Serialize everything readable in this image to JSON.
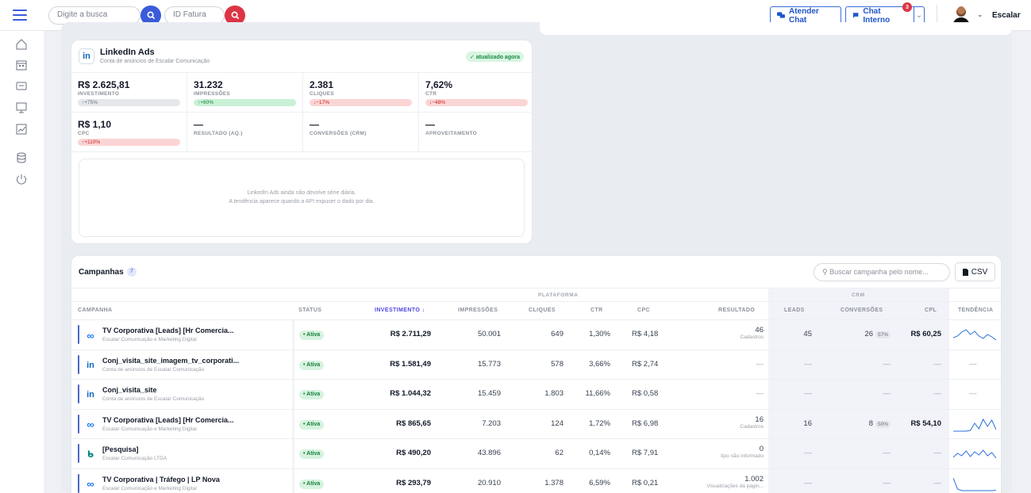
{
  "topbar": {
    "search_placeholder": "Digite a busca",
    "invoice_placeholder": "ID Fatura",
    "attend_chat": "Atender Chat",
    "internal_chat": "Chat Interno",
    "internal_chat_badge": "3",
    "user_name": "Escalar"
  },
  "linkedin": {
    "title": "LinkedIn Ads",
    "subtitle": "Conta de anúncios de Escalar Comunicação",
    "updated": "✓ atualizado agora",
    "metrics": [
      {
        "value": "R$ 2.625,81",
        "label": "INVESTIMENTO",
        "delta": "↑+75%",
        "tone": "gray"
      },
      {
        "value": "31.232",
        "label": "IMPRESSÕES",
        "delta": "↑+60%",
        "tone": "green"
      },
      {
        "value": "2.381",
        "label": "CLIQUES",
        "delta": "↓−17%",
        "tone": "red"
      },
      {
        "value": "7,62%",
        "label": "CTR",
        "delta": "↓−48%",
        "tone": "red"
      },
      {
        "value": "R$ 1,10",
        "label": "CPC",
        "delta": "↑+110%",
        "tone": "red"
      },
      {
        "value": "—",
        "label": "RESULTADO (AQ.)",
        "delta": "",
        "tone": ""
      },
      {
        "value": "—",
        "label": "CONVERSÕES (CRM)",
        "delta": "",
        "tone": ""
      },
      {
        "value": "—",
        "label": "APROVEITAMENTO",
        "delta": "",
        "tone": ""
      }
    ],
    "empty_line1": "LinkedIn Ads ainda não devolve série diária.",
    "empty_line2": "A tendência aparece quando a API expuser o dado por dia."
  },
  "campaigns": {
    "title": "Campanhas",
    "count": "7",
    "search_placeholder": "Buscar campanha pelo nome...",
    "csv": "CSV",
    "group_platform": "PLATAFORMA",
    "group_crm": "CRM",
    "headers": {
      "campaign": "CAMPANHA",
      "status": "STATUS",
      "investment": "INVESTIMENTO ↓",
      "impressions": "IMPRESSÕES",
      "clicks": "CLIQUES",
      "ctr": "CTR",
      "cpc": "CPC",
      "result": "RESULTADO",
      "leads": "LEADS",
      "conversions": "CONVERSÕES",
      "cpl": "CPL",
      "trend": "TENDÊNCIA"
    },
    "rows": [
      {
        "platform": "meta",
        "name": "TV Corporativa [Leads] [Hr Comercia...",
        "account": "Escalar Comunicação e Marketing Digital",
        "status": "• Ativa",
        "investment": "R$ 2.711,29",
        "impressions": "50.001",
        "clicks": "649",
        "ctr": "1,30%",
        "cpc": "R$ 4,18",
        "result": "46",
        "result_sub": "Cadastros",
        "leads": "45",
        "conversions": "26",
        "conv_pct": "57%",
        "cpl": "R$ 60,25",
        "trend": [
          0.35,
          0.45,
          0.7,
          0.85,
          0.55,
          0.75,
          0.45,
          0.3,
          0.55,
          0.4,
          0.2
        ],
        "trend_label": "",
        "dash": false
      },
      {
        "platform": "linkedin",
        "name": "Conj_visita_site_imagem_tv_corporati...",
        "account": "Conta de anúncios de Escalar Comunicação",
        "status": "• Ativa",
        "investment": "R$ 1.581,49",
        "impressions": "15.773",
        "clicks": "578",
        "ctr": "3,66%",
        "cpc": "R$ 2,74",
        "result": "—",
        "result_sub": "",
        "leads": "—",
        "conversions": "—",
        "conv_pct": "",
        "cpl": "—",
        "trend": [],
        "trend_label": "—",
        "dash": true
      },
      {
        "platform": "linkedin",
        "name": "Conj_visita_site",
        "account": "Conta de anúncios de Escalar Comunicação",
        "status": "• Ativa",
        "investment": "R$ 1.044,32",
        "impressions": "15.459",
        "clicks": "1.803",
        "ctr": "11,66%",
        "cpc": "R$ 0,58",
        "result": "—",
        "result_sub": "",
        "leads": "—",
        "conversions": "—",
        "conv_pct": "",
        "cpl": "—",
        "trend": [],
        "trend_label": "—",
        "dash": true
      },
      {
        "platform": "meta",
        "name": "TV Corporativa [Leads] [Hr Comercia...",
        "account": "Escalar Comunicação e Marketing Digital",
        "status": "• Ativa",
        "investment": "R$ 865,65",
        "impressions": "7.203",
        "clicks": "124",
        "ctr": "1,72%",
        "cpc": "R$ 6,98",
        "result": "16",
        "result_sub": "Cadastros",
        "leads": "16",
        "conversions": "8",
        "conv_pct": "50%",
        "cpl": "R$ 54,10",
        "trend": [
          0.1,
          0.1,
          0.1,
          0.1,
          0.15,
          0.6,
          0.25,
          0.85,
          0.4,
          0.8,
          0.2
        ],
        "trend_label": "",
        "dash": false
      },
      {
        "platform": "bing",
        "name": "[Pesquisa]",
        "account": "Escalar Comunicação LTDA",
        "status": "• Ativa",
        "investment": "R$ 490,20",
        "impressions": "43.896",
        "clicks": "62",
        "ctr": "0,14%",
        "cpc": "R$ 7,91",
        "result": "0",
        "result_sub": "tipo não informado",
        "leads": "—",
        "conversions": "—",
        "conv_pct": "",
        "cpl": "—",
        "trend": [
          0.3,
          0.55,
          0.4,
          0.7,
          0.35,
          0.65,
          0.45,
          0.75,
          0.4,
          0.6,
          0.25
        ],
        "trend_label": "",
        "dash": false
      },
      {
        "platform": "meta",
        "name": "TV Corporativa | Tráfego | LP Nova",
        "account": "Escalar Comunicação e Marketing Digital",
        "status": "• Ativa",
        "investment": "R$ 293,79",
        "impressions": "20.910",
        "clicks": "1.378",
        "ctr": "6,59%",
        "cpc": "R$ 0,21",
        "result": "1.002",
        "result_sub": "Visualizações da págin...",
        "leads": "—",
        "conversions": "—",
        "conv_pct": "",
        "cpl": "—",
        "trend": [
          0.9,
          0.2,
          0.1,
          0.1,
          0.1,
          0.1,
          0.1,
          0.1,
          0.1,
          0.1,
          0.12
        ],
        "trend_label": "",
        "dash": false
      }
    ]
  },
  "colors": {
    "primary": "#3b5bdb",
    "danger": "#dc3545",
    "linkedin": "#0a66c2",
    "meta": "#1877f2",
    "bing": "#0c8484"
  }
}
